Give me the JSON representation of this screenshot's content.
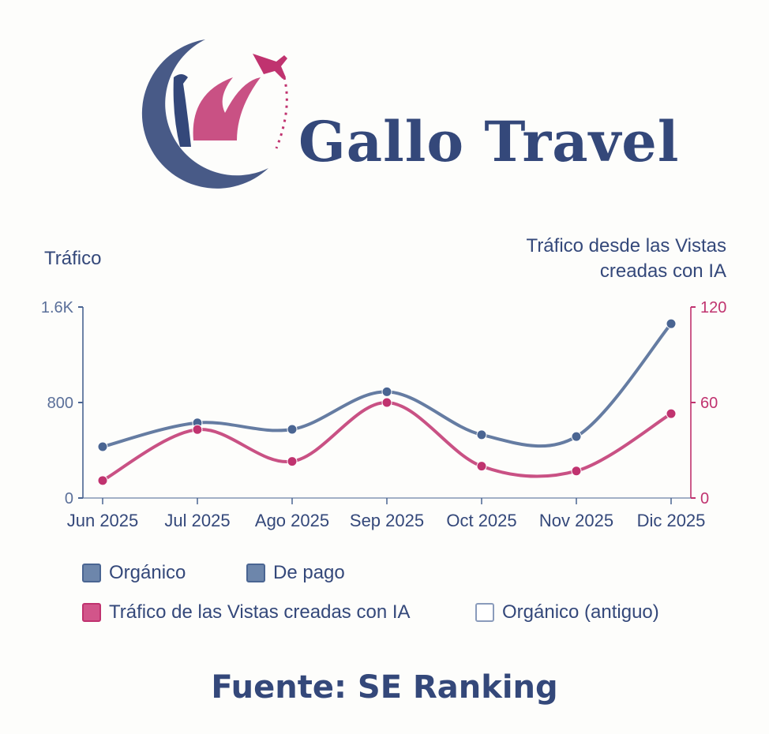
{
  "brand": {
    "name": "Gallo Travel"
  },
  "source": "Fuente: SE Ranking",
  "colors": {
    "organic": "#4a6592",
    "ai": "#c0336f",
    "text": "#34487a"
  },
  "chart_data": {
    "type": "line",
    "categories": [
      "Jun 2025",
      "Jul 2025",
      "Ago 2025",
      "Sep 2025",
      "Oct 2025",
      "Nov 2025",
      "Dic 2025"
    ],
    "ylabel_left": "Tráfico",
    "ylabel_right": "Tráfico desde las Vistas creadas con IA",
    "ylim_left": [
      0,
      1600
    ],
    "yticks_left": [
      "0",
      "800",
      "1.6K"
    ],
    "ylim_right": [
      0,
      120
    ],
    "yticks_right": [
      "0",
      "60",
      "120"
    ],
    "grid": false,
    "series": [
      {
        "name": "Orgánico",
        "axis": "left",
        "values": [
          430,
          630,
          575,
          890,
          530,
          515,
          1460
        ]
      },
      {
        "name": "Tráfico de las Vistas creadas con IA",
        "axis": "right",
        "values": [
          11,
          43,
          23,
          60,
          20,
          17,
          53
        ]
      }
    ],
    "legend": {
      "position": "bottom",
      "items": [
        {
          "label": "Orgánico",
          "color": "#4a6592"
        },
        {
          "label": "De pago",
          "color": "#4a6592"
        },
        {
          "label": "Tráfico de las Vistas creadas con IA",
          "color": "#c0336f"
        },
        {
          "label": "Orgánico (antiguo)",
          "color": "none"
        }
      ]
    }
  }
}
